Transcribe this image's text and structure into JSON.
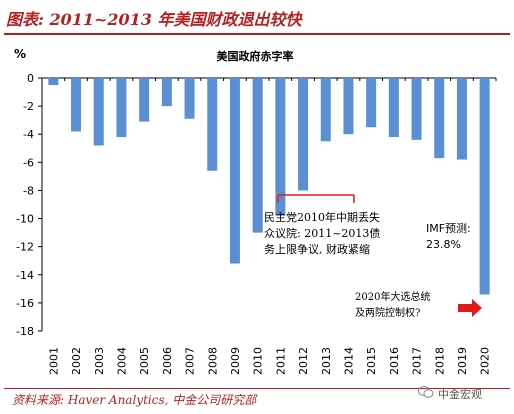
{
  "figure": {
    "title": "图表: 2011~2013 年美国财政退出较快",
    "source": "资料来源:  Haver Analytics,  中金公司研究部",
    "watermark": "中金宏观"
  },
  "chart_data": {
    "type": "bar",
    "title": "美国政府赤字率",
    "ylabel": "%",
    "xlabel": "",
    "ylim": [
      -18,
      0
    ],
    "yticks": [
      0,
      -2,
      -4,
      -6,
      -8,
      -10,
      -12,
      -14,
      -16,
      -18
    ],
    "grid": false,
    "colors": {
      "bar": "#5b8fd4",
      "highlight": "#e31a1c",
      "axis": "#000000"
    },
    "categories": [
      "2001",
      "2002",
      "2003",
      "2004",
      "2005",
      "2006",
      "2007",
      "2008",
      "2009",
      "2010",
      "2011",
      "2012",
      "2013",
      "2014",
      "2015",
      "2016",
      "2017",
      "2018",
      "2019",
      "2020"
    ],
    "values": [
      -0.5,
      -3.8,
      -4.8,
      -4.2,
      -3.1,
      -2.0,
      -2.9,
      -6.6,
      -13.2,
      -11.0,
      -9.8,
      -8.0,
      -4.5,
      -4.0,
      -3.5,
      -4.2,
      -4.4,
      -5.7,
      -5.8,
      -15.4
    ],
    "annotations": [
      {
        "text_lines": [
          "民主党2010年中期丢失",
          "众议院: 2011~2013债",
          "务上限争议, 财政紧缩"
        ]
      },
      {
        "text_lines": [
          "IMF预测:",
          "23.8%"
        ]
      },
      {
        "text_lines": [
          "2020年大选总统",
          "及两院控制权?"
        ]
      }
    ]
  }
}
